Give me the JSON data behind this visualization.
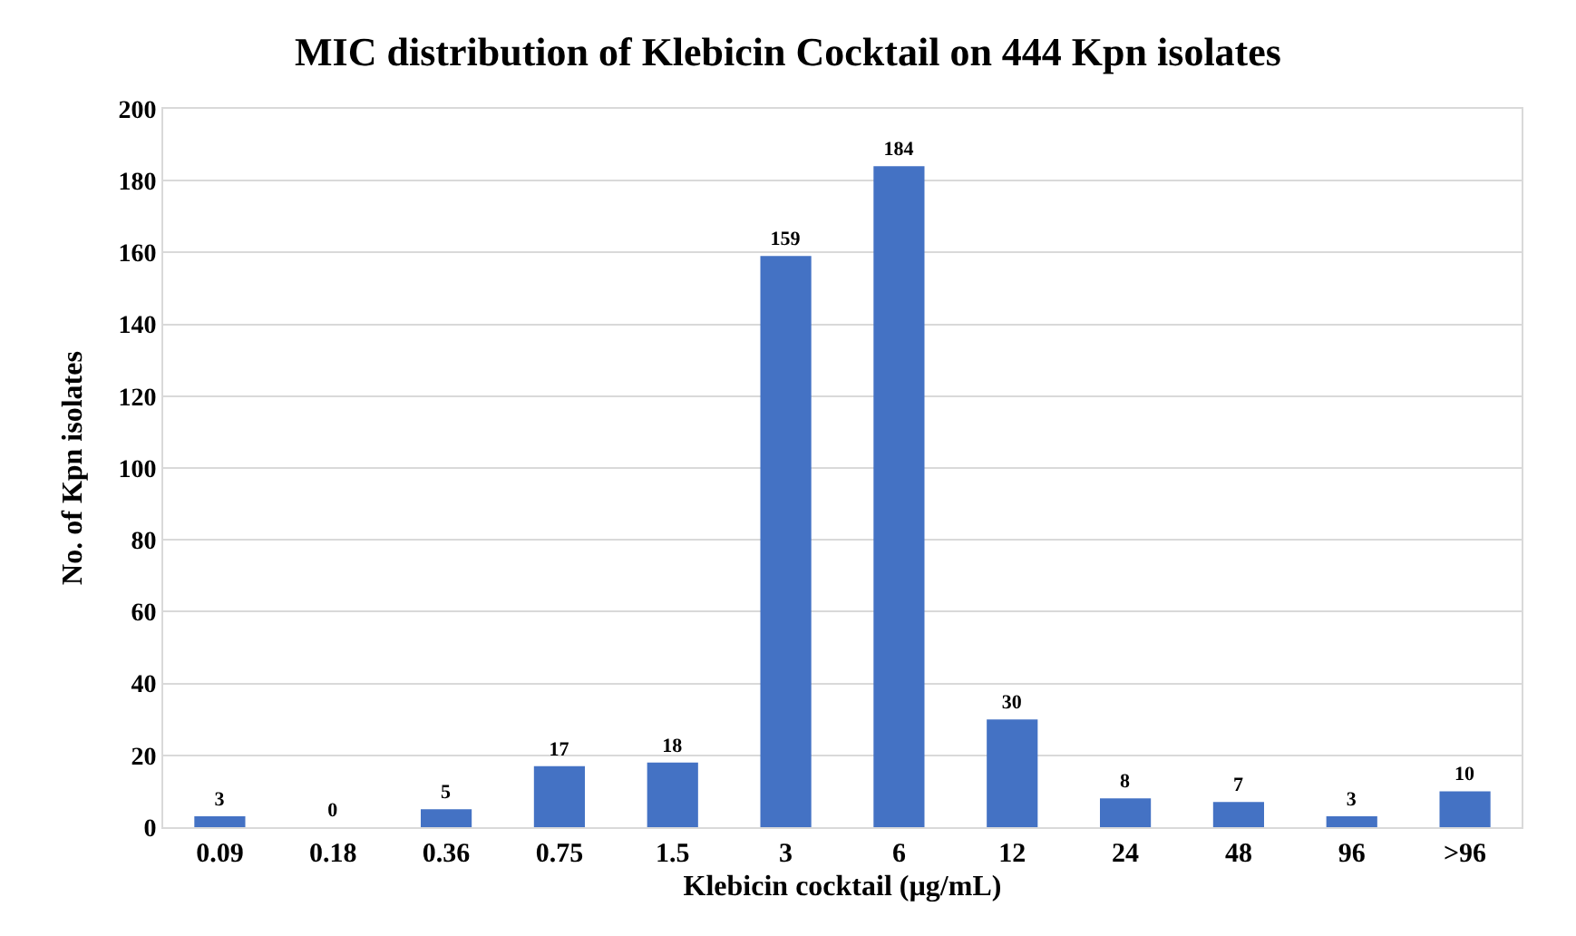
{
  "chart_data": {
    "type": "bar",
    "title": "MIC distribution of Klebicin Cocktail on 444 Kpn isolates",
    "xlabel": "Klebicin cocktail (µg/mL)",
    "ylabel": "No. of Kpn isolates",
    "categories": [
      "0.09",
      "0.18",
      "0.36",
      "0.75",
      "1.5",
      "3",
      "6",
      "12",
      "24",
      "48",
      "96",
      ">96"
    ],
    "values": [
      3,
      0,
      5,
      17,
      18,
      159,
      184,
      30,
      8,
      7,
      3,
      10
    ],
    "color": "#4472c4",
    "ylim": [
      0,
      200
    ],
    "yticks": [
      0,
      20,
      40,
      60,
      80,
      100,
      120,
      140,
      160,
      180,
      200
    ],
    "grid": "y",
    "data_labels": true,
    "legend": false
  }
}
